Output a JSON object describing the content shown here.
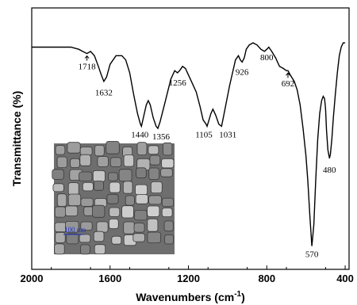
{
  "chart_data": {
    "type": "line",
    "xlabel": "Wavenumbers (cm-1)",
    "xlabel_base": "Wavenumbers (cm",
    "xlabel_sup": "-1",
    "xlabel_end": ")",
    "ylabel": "Transmittance (%)",
    "xlim": [
      2000,
      380
    ],
    "x_reversed": true,
    "xticks": [
      2000,
      1600,
      1200,
      800,
      400
    ],
    "ylim": [
      0,
      100
    ],
    "grid": false,
    "y_tick_labels": false,
    "series": [
      {
        "x": [
          2000,
          1900,
          1800,
          1760,
          1740,
          1718,
          1700,
          1680,
          1660,
          1645,
          1632,
          1618,
          1600,
          1570,
          1540,
          1520,
          1500,
          1480,
          1460,
          1445,
          1440,
          1430,
          1415,
          1405,
          1395,
          1380,
          1365,
          1356,
          1345,
          1320,
          1290,
          1270,
          1256,
          1245,
          1230,
          1215,
          1200,
          1180,
          1160,
          1140,
          1125,
          1110,
          1105,
          1095,
          1085,
          1075,
          1060,
          1045,
          1031,
          1020,
          1005,
          990,
          975,
          960,
          945,
          935,
          926,
          915,
          905,
          890,
          870,
          850,
          830,
          812,
          800,
          790,
          775,
          755,
          735,
          715,
          700,
          692,
          680,
          660,
          645,
          630,
          615,
          600,
          590,
          580,
          570,
          560,
          550,
          540,
          530,
          520,
          512,
          505,
          500,
          495,
          488,
          480,
          475,
          468,
          460,
          450,
          440,
          430,
          420,
          410,
          400
        ],
        "y": [
          95,
          95,
          95,
          94,
          93,
          92,
          93,
          91,
          86,
          82,
          79,
          81,
          87,
          91,
          91,
          89,
          83,
          73,
          64,
          59,
          58,
          62,
          68,
          70,
          68,
          62,
          58,
          57,
          60,
          69,
          80,
          84,
          83,
          84,
          86,
          85,
          82,
          78,
          74,
          67,
          61,
          59,
          58,
          61,
          64,
          66,
          63,
          59,
          58,
          63,
          70,
          77,
          83,
          89,
          91,
          89,
          88,
          90,
          94,
          96,
          97,
          96,
          94,
          93,
          94,
          95,
          93,
          90,
          86,
          85,
          84,
          84,
          82,
          79,
          75,
          68,
          57,
          44,
          32,
          16,
          2,
          12,
          33,
          52,
          64,
          70,
          72,
          71,
          66,
          56,
          47,
          43,
          45,
          52,
          62,
          73,
          83,
          91,
          95,
          97,
          97
        ]
      }
    ],
    "peak_labels": [
      "1718",
      "1632",
      "1440",
      "1356",
      "1256",
      "1105",
      "1031",
      "926",
      "800",
      "692",
      "570",
      "480"
    ]
  },
  "inset": {
    "scale_bar_label": "100 nm"
  }
}
